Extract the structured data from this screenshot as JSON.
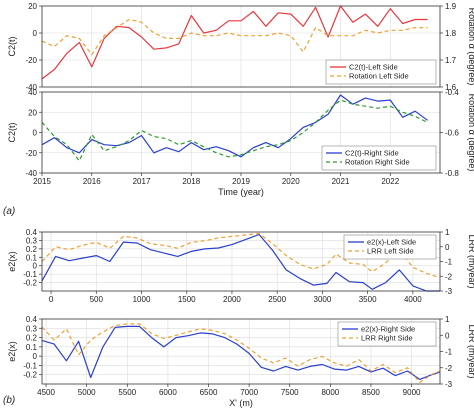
{
  "figure": {
    "panel_labels": [
      "(a)",
      "(b)"
    ]
  },
  "chart_data": [
    {
      "id": "a1",
      "type": "line",
      "xlim": [
        2015,
        2023
      ],
      "ylim": [
        -40,
        20
      ],
      "y2lim": [
        1.6,
        1.9
      ],
      "y2_ticks": [
        1.6,
        1.7,
        1.8,
        1.9
      ],
      "yticks": [
        -40,
        -20,
        0,
        20
      ],
      "ylabel": "C2(t)",
      "y2label": "Rotation α (degree)",
      "xticks": [],
      "grid": true,
      "legend": "bottom-right",
      "series": [
        {
          "name": "C2(t)-Left Side",
          "color": "#e8383d",
          "dash": "",
          "axis": "y",
          "x": [
            2015.0,
            2015.25,
            2015.5,
            2015.75,
            2016.0,
            2016.25,
            2016.5,
            2016.75,
            2017.0,
            2017.25,
            2017.5,
            2017.75,
            2018.0,
            2018.25,
            2018.5,
            2018.75,
            2019.0,
            2019.25,
            2019.5,
            2019.75,
            2020.0,
            2020.25,
            2020.5,
            2020.75,
            2021.0,
            2021.25,
            2021.5,
            2021.75,
            2022.0,
            2022.25,
            2022.5,
            2022.75
          ],
          "values": [
            -34,
            -27,
            -15,
            -7,
            -25,
            -4,
            5,
            4,
            -3,
            -12,
            -11,
            -8,
            13,
            0,
            2,
            9,
            9,
            16,
            5,
            15,
            14,
            5,
            19,
            -3,
            21,
            8,
            14,
            5,
            18,
            7,
            10,
            10
          ]
        },
        {
          "name": "Rotation Left Side",
          "color": "#f0a030",
          "dash": "4,3",
          "axis": "y2",
          "x": [
            2015.0,
            2015.25,
            2015.5,
            2015.75,
            2016.0,
            2016.25,
            2016.5,
            2016.75,
            2017.0,
            2017.25,
            2017.5,
            2017.75,
            2018.0,
            2018.25,
            2018.5,
            2018.75,
            2019.0,
            2019.25,
            2019.5,
            2019.75,
            2020.0,
            2020.25,
            2020.5,
            2020.75,
            2021.0,
            2021.25,
            2021.5,
            2021.75,
            2022.0,
            2022.25,
            2022.5,
            2022.75
          ],
          "values": [
            1.77,
            1.75,
            1.79,
            1.78,
            1.72,
            1.79,
            1.82,
            1.85,
            1.84,
            1.8,
            1.78,
            1.78,
            1.8,
            1.79,
            1.79,
            1.8,
            1.79,
            1.79,
            1.79,
            1.8,
            1.79,
            1.73,
            1.82,
            1.79,
            1.79,
            1.79,
            1.81,
            1.8,
            1.81,
            1.81,
            1.82,
            1.82
          ]
        }
      ]
    },
    {
      "id": "a2",
      "type": "line",
      "xlim": [
        2015,
        2023
      ],
      "ylim": [
        -40,
        40
      ],
      "y2lim": [
        -0.8,
        -0.4
      ],
      "yticks": [
        -40,
        -20,
        0,
        20,
        40
      ],
      "y2_ticks": [
        -0.8,
        -0.6,
        -0.4
      ],
      "ylabel": "C2(t)",
      "y2label": "Rotation α (degree)",
      "xticks": [
        2015,
        2016,
        2017,
        2018,
        2019,
        2020,
        2021,
        2022
      ],
      "xlabel": "Time (year)",
      "grid": true,
      "legend": "bottom-right",
      "series": [
        {
          "name": "C2(t)-Right Side",
          "color": "#2a3fd0",
          "dash": "",
          "axis": "y",
          "x": [
            2015.0,
            2015.25,
            2015.5,
            2015.75,
            2016.0,
            2016.25,
            2016.5,
            2016.75,
            2017.0,
            2017.25,
            2017.5,
            2017.75,
            2018.0,
            2018.25,
            2018.5,
            2018.75,
            2019.0,
            2019.25,
            2019.5,
            2019.75,
            2020.0,
            2020.25,
            2020.5,
            2020.75,
            2021.0,
            2021.25,
            2021.5,
            2021.75,
            2022.0,
            2022.25,
            2022.5,
            2022.75
          ],
          "values": [
            -12,
            -5,
            -15,
            -20,
            -7,
            -12,
            -13,
            -10,
            -3,
            -20,
            -15,
            -19,
            -10,
            -17,
            -14,
            -18,
            -24,
            -15,
            -10,
            -15,
            -6,
            5,
            10,
            18,
            37,
            28,
            34,
            31,
            32,
            15,
            21,
            12
          ]
        },
        {
          "name": "Rotation Right Side",
          "color": "#2e9a2e",
          "dash": "4,3",
          "axis": "y2",
          "x": [
            2015.0,
            2015.25,
            2015.5,
            2015.75,
            2016.0,
            2016.25,
            2016.5,
            2016.75,
            2017.0,
            2017.25,
            2017.5,
            2017.75,
            2018.0,
            2018.25,
            2018.5,
            2018.75,
            2019.0,
            2019.25,
            2019.5,
            2019.75,
            2020.0,
            2020.25,
            2020.5,
            2020.75,
            2021.0,
            2021.25,
            2021.5,
            2021.75,
            2022.0,
            2022.25,
            2022.5,
            2022.75
          ],
          "values": [
            -0.55,
            -0.62,
            -0.66,
            -0.74,
            -0.61,
            -0.69,
            -0.67,
            -0.64,
            -0.59,
            -0.62,
            -0.63,
            -0.66,
            -0.64,
            -0.67,
            -0.7,
            -0.72,
            -0.71,
            -0.69,
            -0.67,
            -0.66,
            -0.64,
            -0.6,
            -0.55,
            -0.49,
            -0.44,
            -0.46,
            -0.47,
            -0.48,
            -0.47,
            -0.5,
            -0.52,
            -0.55
          ]
        }
      ]
    },
    {
      "id": "b1",
      "type": "line",
      "xlim": [
        -100,
        4300
      ],
      "ylim": [
        -0.3,
        0.4
      ],
      "yticks": [
        -0.2,
        -0.1,
        0,
        0.1,
        0.2,
        0.3,
        0.4
      ],
      "y2lim": [
        -3,
        1
      ],
      "y2_ticks": [
        -3,
        -2,
        -1,
        0,
        1
      ],
      "ylabel": "e2(x)",
      "y2label": "LRR (m/year)",
      "xticks": [
        0,
        500,
        1000,
        1500,
        2000,
        2500,
        3000,
        3500,
        4000
      ],
      "grid": true,
      "legend": "top-right",
      "series": [
        {
          "name": "e2(x)-Left Side",
          "color": "#2a3fd0",
          "dash": "",
          "axis": "y",
          "x": [
            -100,
            50,
            200,
            350,
            500,
            650,
            800,
            950,
            1100,
            1250,
            1400,
            1550,
            1700,
            1850,
            2000,
            2150,
            2300,
            2450,
            2600,
            2750,
            2900,
            3050,
            3150,
            3300,
            3450,
            3550,
            3700,
            3850,
            4000,
            4150,
            4300
          ],
          "values": [
            -0.18,
            0.11,
            0.06,
            0.09,
            0.12,
            0.05,
            0.28,
            0.27,
            0.19,
            0.15,
            0.11,
            0.17,
            0.2,
            0.21,
            0.25,
            0.31,
            0.37,
            0.18,
            -0.05,
            -0.15,
            -0.23,
            -0.21,
            -0.08,
            -0.19,
            -0.2,
            -0.28,
            -0.2,
            -0.05,
            -0.24,
            -0.3,
            -0.31
          ]
        },
        {
          "name": "LRR Left Side",
          "color": "#f0a030",
          "dash": "4,3",
          "axis": "y2",
          "x": [
            -100,
            50,
            200,
            350,
            500,
            650,
            800,
            950,
            1100,
            1250,
            1400,
            1550,
            1700,
            1850,
            2000,
            2150,
            2300,
            2450,
            2600,
            2750,
            2900,
            3050,
            3150,
            3300,
            3450,
            3550,
            3700,
            3850,
            4000,
            4150,
            4300
          ],
          "values": [
            -1.0,
            0.0,
            -0.2,
            0.1,
            0.3,
            -0.1,
            0.7,
            0.6,
            0.2,
            0.1,
            -0.1,
            0.3,
            0.4,
            0.6,
            0.7,
            0.8,
            0.9,
            0.2,
            -0.6,
            -1.2,
            -1.5,
            -1.2,
            -0.5,
            -1.1,
            -1.2,
            -1.7,
            -1.1,
            -0.2,
            -1.4,
            -1.8,
            -2.1
          ]
        }
      ]
    },
    {
      "id": "b2",
      "type": "line",
      "xlim": [
        4450,
        9350
      ],
      "ylim": [
        -0.3,
        0.4
      ],
      "yticks": [
        -0.2,
        -0.1,
        0,
        0.1,
        0.2,
        0.3,
        0.4
      ],
      "y2lim": [
        -3,
        1
      ],
      "y2_ticks": [
        -3,
        -2,
        -1,
        0,
        1
      ],
      "ylabel": "e2(x)",
      "y2label": "LRR (m/year)",
      "xticks": [
        4500,
        5000,
        5500,
        6000,
        6500,
        7000,
        7500,
        8000,
        8500,
        9000
      ],
      "xlabel": "X' (m)",
      "grid": true,
      "legend": "top-right",
      "series": [
        {
          "name": "e2(x)-Right Side",
          "color": "#2a3fd0",
          "dash": "",
          "axis": "y",
          "x": [
            4450,
            4600,
            4750,
            4900,
            5050,
            5200,
            5350,
            5500,
            5650,
            5800,
            5950,
            6100,
            6250,
            6400,
            6550,
            6700,
            6850,
            7000,
            7150,
            7300,
            7450,
            7600,
            7750,
            7900,
            8050,
            8200,
            8350,
            8500,
            8650,
            8800,
            8950,
            9100,
            9250,
            9350
          ],
          "values": [
            0.17,
            0.13,
            -0.05,
            0.16,
            -0.23,
            0.1,
            0.31,
            0.32,
            0.32,
            0.2,
            0.1,
            0.2,
            0.22,
            0.25,
            0.24,
            0.2,
            0.13,
            0.03,
            -0.12,
            -0.16,
            -0.11,
            -0.15,
            -0.11,
            -0.09,
            -0.14,
            -0.15,
            -0.11,
            -0.17,
            -0.13,
            -0.21,
            -0.16,
            -0.25,
            -0.2,
            -0.17
          ]
        },
        {
          "name": "LRR Right Side",
          "color": "#f0a030",
          "dash": "4,3",
          "axis": "y2",
          "x": [
            4450,
            4600,
            4750,
            4900,
            5050,
            5200,
            5350,
            5500,
            5650,
            5800,
            5950,
            6100,
            6250,
            6400,
            6550,
            6700,
            6850,
            7000,
            7150,
            7300,
            7450,
            7600,
            7750,
            7900,
            8050,
            8200,
            8350,
            8500,
            8650,
            8800,
            8950,
            9100,
            9250,
            9350
          ],
          "values": [
            0.5,
            -0.3,
            0.4,
            -1.2,
            -0.3,
            0.2,
            0.6,
            0.7,
            0.7,
            0.1,
            -0.2,
            0.0,
            0.2,
            0.4,
            0.3,
            0.1,
            -0.3,
            -0.8,
            -1.4,
            -1.7,
            -1.4,
            -1.9,
            -1.5,
            -1.3,
            -1.7,
            -1.9,
            -1.5,
            -2.2,
            -1.8,
            -2.3,
            -2.0,
            -2.9,
            -2.4,
            -2.2
          ]
        }
      ]
    }
  ]
}
